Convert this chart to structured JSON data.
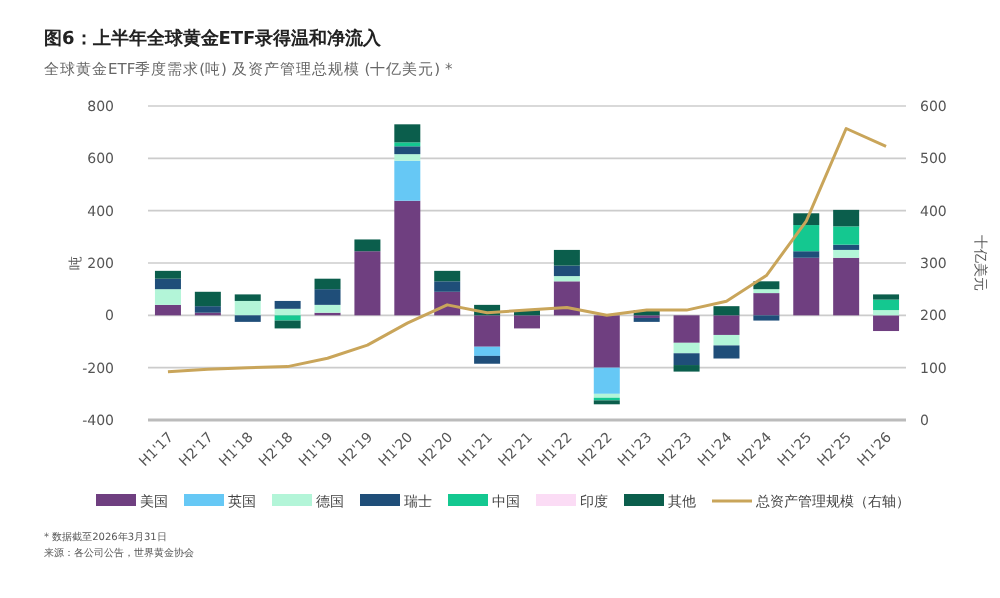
{
  "chart_data": {
    "type": "bar",
    "title": "图6：上半年全球黄金ETF录得温和净流入",
    "subtitle": "全球黄金ETF季度需求(吨) 及资产管理总规模 (十亿美元) *",
    "ylabel": "吨",
    "y2label": "十亿美元",
    "categories": [
      "H1'17",
      "H2'17",
      "H1'18",
      "H2'18",
      "H1'19",
      "H2'19",
      "H1'20",
      "H2'20",
      "H1'21",
      "H2'21",
      "H1'22",
      "H2'22",
      "H1'23",
      "H2'23",
      "H1'24",
      "H2'24",
      "H1'25",
      "H2'25",
      "H1'26"
    ],
    "series": [
      {
        "name": "美国",
        "color": "#6f3f80",
        "values": [
          40,
          10,
          null,
          null,
          10,
          245,
          438,
          90,
          -120,
          -50,
          130,
          -200,
          -10,
          -105,
          -75,
          85,
          220,
          220,
          -60
        ]
      },
      {
        "name": "英国",
        "color": "#66c8f5",
        "values": [
          null,
          null,
          null,
          null,
          null,
          null,
          153,
          null,
          -35,
          null,
          null,
          -100,
          null,
          null,
          null,
          null,
          null,
          null,
          null
        ]
      },
      {
        "name": "德国",
        "color": "#b3f5d8",
        "values": [
          60,
          null,
          55,
          25,
          30,
          null,
          25,
          null,
          null,
          null,
          20,
          -15,
          null,
          -40,
          -40,
          15,
          null,
          30,
          20
        ]
      },
      {
        "name": "瑞士",
        "color": "#1f4e79",
        "values": [
          40,
          25,
          -25,
          30,
          60,
          null,
          30,
          40,
          -30,
          null,
          40,
          null,
          -15,
          -45,
          -50,
          -20,
          25,
          20,
          null
        ]
      },
      {
        "name": "中国",
        "color": "#14c890",
        "values": [
          null,
          null,
          null,
          -20,
          null,
          null,
          15,
          null,
          null,
          null,
          null,
          -10,
          null,
          null,
          null,
          null,
          100,
          70,
          40
        ]
      },
      {
        "name": "印度",
        "color": "#fbdcf5",
        "values": [
          null,
          null,
          null,
          null,
          null,
          null,
          null,
          null,
          null,
          null,
          null,
          null,
          null,
          null,
          null,
          null,
          null,
          null,
          null
        ]
      },
      {
        "name": "其他",
        "color": "#0b5e4c",
        "values": [
          30,
          55,
          25,
          -30,
          40,
          45,
          69,
          40,
          40,
          20,
          60,
          -15,
          20,
          -25,
          35,
          30,
          45,
          63,
          20
        ]
      },
      {
        "name": "总资产管理规模（右轴）",
        "color": "#c9a55a",
        "type": "line",
        "axis": "y2",
        "values": [
          92,
          97,
          100,
          102,
          118,
          143,
          185,
          220,
          205,
          210,
          215,
          200,
          210,
          210,
          227,
          276,
          380,
          557,
          523
        ]
      }
    ],
    "stacked": true,
    "ylim": [
      -400,
      800
    ],
    "yticks": [
      -400,
      -200,
      0,
      200,
      400,
      600,
      800
    ],
    "y2lim": [
      0,
      600
    ],
    "y2ticks": [
      0,
      100,
      200,
      300,
      400,
      500,
      600
    ],
    "grid": "y",
    "legend": "bottom",
    "annotations": [
      "* 数据截至2026年3月31日",
      "来源：各公司公告，世界黄金协会"
    ]
  }
}
